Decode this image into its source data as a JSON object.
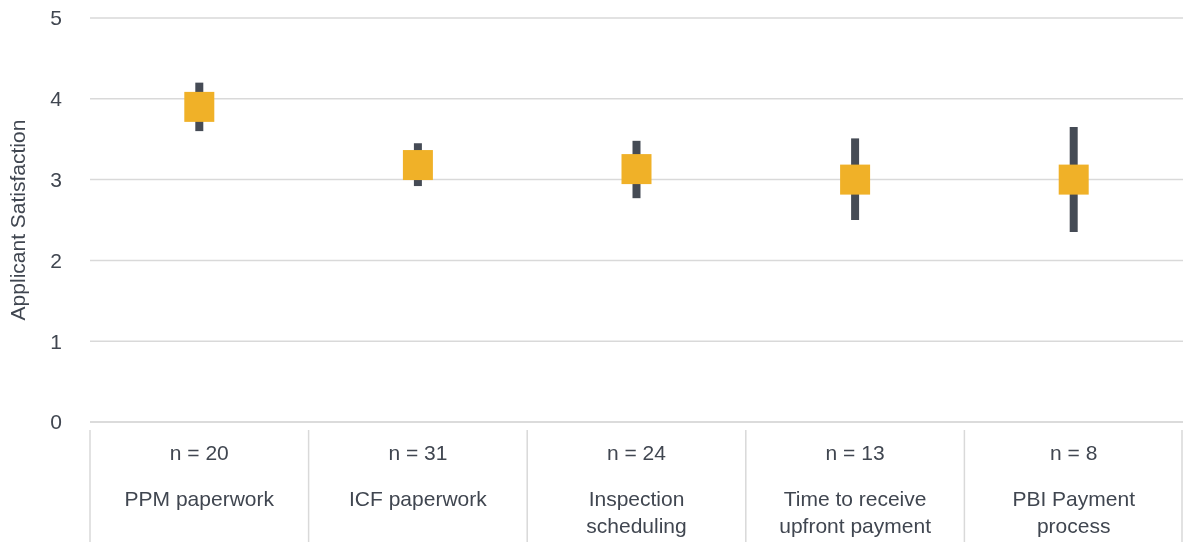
{
  "chart_data": {
    "type": "scatter",
    "ylabel": "Applicant Satisfaction",
    "categories": [
      "PPM paperwork",
      "ICF paperwork",
      "Inspection scheduling",
      "Time to receive upfront payment",
      "PBI Payment process"
    ],
    "series": [
      {
        "color": "#f0b128",
        "values": [
          3.9,
          3.18,
          3.13,
          3.0,
          3.0
        ],
        "errors": [
          [
            3.6,
            4.2
          ],
          [
            2.92,
            3.45
          ],
          [
            2.77,
            3.48
          ],
          [
            2.5,
            3.51
          ],
          [
            2.35,
            3.65
          ]
        ]
      }
    ],
    "annotations": [
      "n = 20",
      "n = 31",
      "n = 24",
      "n = 13",
      "n = 8"
    ],
    "ylim": [
      0,
      5
    ],
    "yticks": [
      0,
      1,
      2,
      3,
      4,
      5
    ],
    "grid": "y",
    "marker": "square",
    "legend": false
  }
}
